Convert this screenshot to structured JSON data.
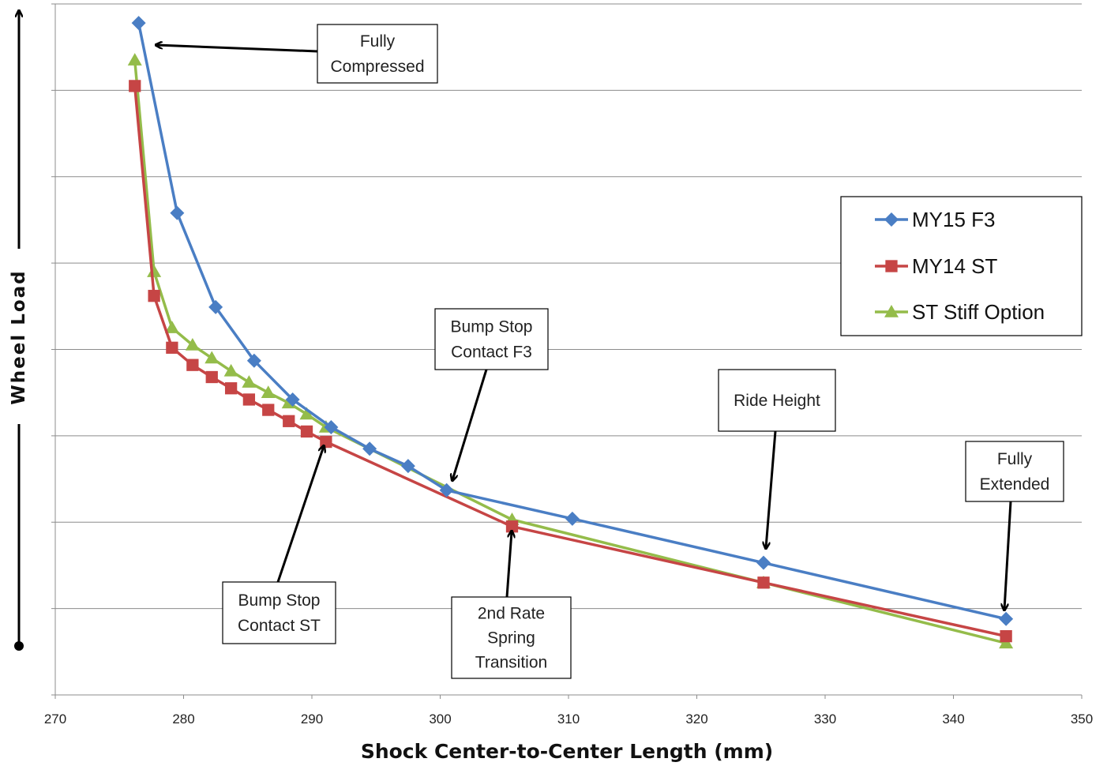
{
  "chart_data": {
    "type": "line",
    "title": "",
    "xlabel": "Shock Center-to-Center Length (mm)",
    "ylabel": "Wheel Load",
    "xlim": [
      270,
      350
    ],
    "x_ticks": [
      270,
      280,
      290,
      300,
      310,
      320,
      330,
      340,
      350
    ],
    "ylim": [
      0,
      8
    ],
    "grid": true,
    "y_tick_labels_shown": false,
    "legend_position": "right",
    "series": [
      {
        "name": "MY15 F3",
        "color": "#4a7ec4",
        "marker": "diamond",
        "points": [
          [
            276.5,
            7.78
          ],
          [
            279.5,
            5.58
          ],
          [
            282.5,
            4.49
          ],
          [
            285.5,
            3.87
          ],
          [
            288.5,
            3.42
          ],
          [
            291.5,
            3.1
          ],
          [
            294.5,
            2.85
          ],
          [
            297.5,
            2.65
          ],
          [
            300.5,
            2.37
          ],
          [
            310.3,
            2.04
          ],
          [
            325.2,
            1.53
          ],
          [
            344.1,
            0.88
          ]
        ]
      },
      {
        "name": "MY14 ST",
        "color": "#c64545",
        "marker": "square",
        "points": [
          [
            276.2,
            7.05
          ],
          [
            277.7,
            4.62
          ],
          [
            279.1,
            4.02
          ],
          [
            280.7,
            3.82
          ],
          [
            282.2,
            3.68
          ],
          [
            283.7,
            3.55
          ],
          [
            285.1,
            3.42
          ],
          [
            286.6,
            3.3
          ],
          [
            288.2,
            3.17
          ],
          [
            289.6,
            3.05
          ],
          [
            291.1,
            2.93
          ],
          [
            305.6,
            1.95
          ],
          [
            325.2,
            1.3
          ],
          [
            344.1,
            0.68
          ]
        ]
      },
      {
        "name": "ST Stiff Option",
        "color": "#94bc4a",
        "marker": "triangle",
        "points": [
          [
            276.2,
            7.35
          ],
          [
            277.7,
            4.9
          ],
          [
            279.1,
            4.25
          ],
          [
            280.7,
            4.05
          ],
          [
            282.2,
            3.9
          ],
          [
            283.7,
            3.75
          ],
          [
            285.1,
            3.62
          ],
          [
            286.6,
            3.5
          ],
          [
            288.2,
            3.38
          ],
          [
            289.6,
            3.25
          ],
          [
            291.1,
            3.1
          ],
          [
            305.6,
            2.03
          ],
          [
            325.2,
            1.3
          ],
          [
            344.1,
            0.6
          ]
        ]
      }
    ],
    "annotations": [
      {
        "id": "fully-compressed",
        "text": "Fully Compressed",
        "lines": [
          "Fully",
          "Compressed"
        ]
      },
      {
        "id": "bump-stop-f3",
        "text": "Bump Stop Contact F3",
        "lines": [
          "Bump Stop",
          "Contact F3"
        ]
      },
      {
        "id": "ride-height",
        "text": "Ride Height",
        "lines": [
          "Ride Height"
        ]
      },
      {
        "id": "fully-extended",
        "text": "Fully Extended",
        "lines": [
          "Fully",
          "Extended"
        ]
      },
      {
        "id": "bump-stop-st",
        "text": "Bump Stop Contact ST",
        "lines": [
          "Bump Stop",
          "Contact ST"
        ]
      },
      {
        "id": "second-rate",
        "text": "2nd Rate Spring Transition",
        "lines": [
          "2nd Rate",
          "Spring",
          "Transition"
        ]
      }
    ]
  }
}
